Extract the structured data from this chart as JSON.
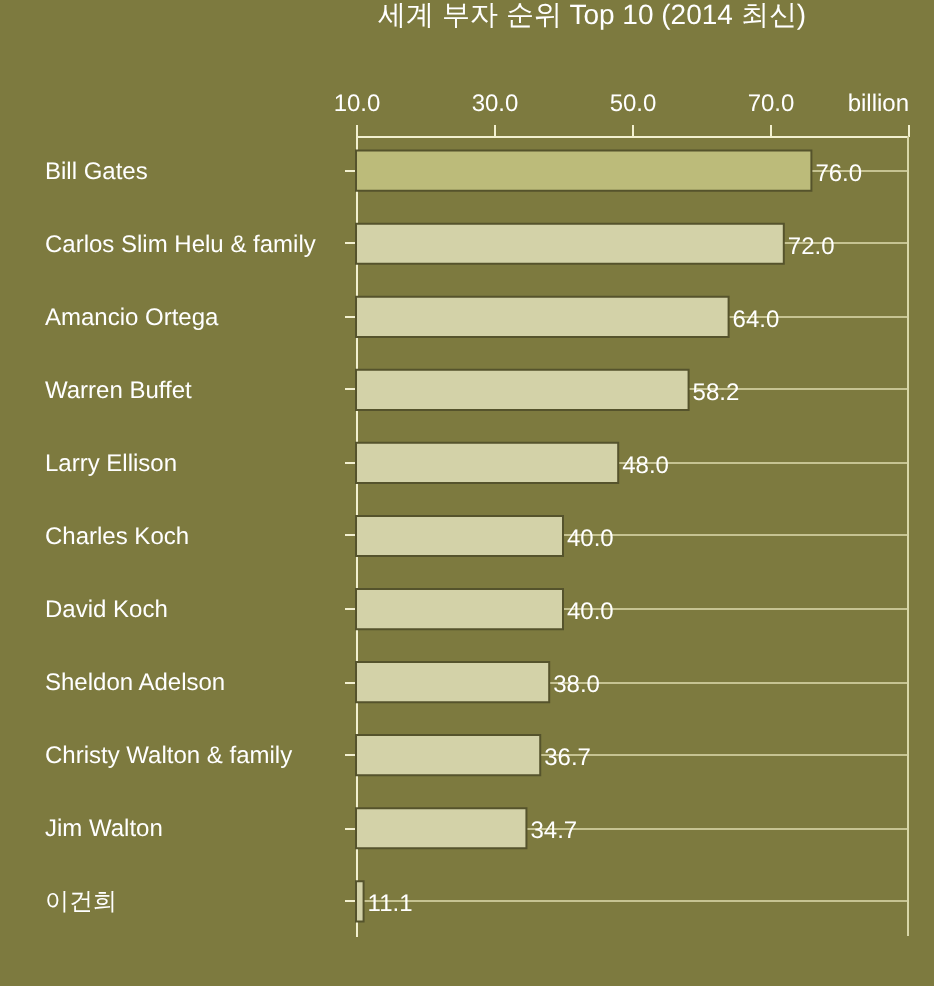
{
  "chart_data": {
    "type": "bar",
    "orientation": "horizontal",
    "title": "세계 부자 순위 Top 10 (2014 최신)",
    "categories": [
      "Bill Gates",
      "Carlos Slim Helu & family",
      "Amancio Ortega",
      "Warren Buffet",
      "Larry Ellison",
      "Charles Koch",
      "David Koch",
      "Sheldon Adelson",
      "Christy Walton & family",
      "Jim Walton",
      "이건희"
    ],
    "values": [
      76.0,
      72.0,
      64.0,
      58.2,
      48.0,
      40.0,
      40.0,
      38.0,
      36.7,
      34.7,
      11.1
    ],
    "colors": [
      "#bcbb7a",
      "#d3d2a8",
      "#d3d2a8",
      "#d3d2a8",
      "#d3d2a8",
      "#d3d2a8",
      "#d3d2a8",
      "#d3d2a8",
      "#d3d2a8",
      "#d3d2a8",
      "#d3d2a8"
    ],
    "value_labels": [
      "76.0",
      "72.0",
      "64.0",
      "58.2",
      "48.0",
      "40.0",
      "40.0",
      "38.0",
      "36.7",
      "34.7",
      "11.1"
    ],
    "xlim": [
      10,
      90
    ],
    "xticks": [
      {
        "value": 10,
        "label": "10.0"
      },
      {
        "value": 30,
        "label": "30.0"
      },
      {
        "value": 50,
        "label": "50.0"
      },
      {
        "value": 70,
        "label": "70.0"
      },
      {
        "value": 90,
        "label": "billion"
      }
    ],
    "grid": "y"
  }
}
